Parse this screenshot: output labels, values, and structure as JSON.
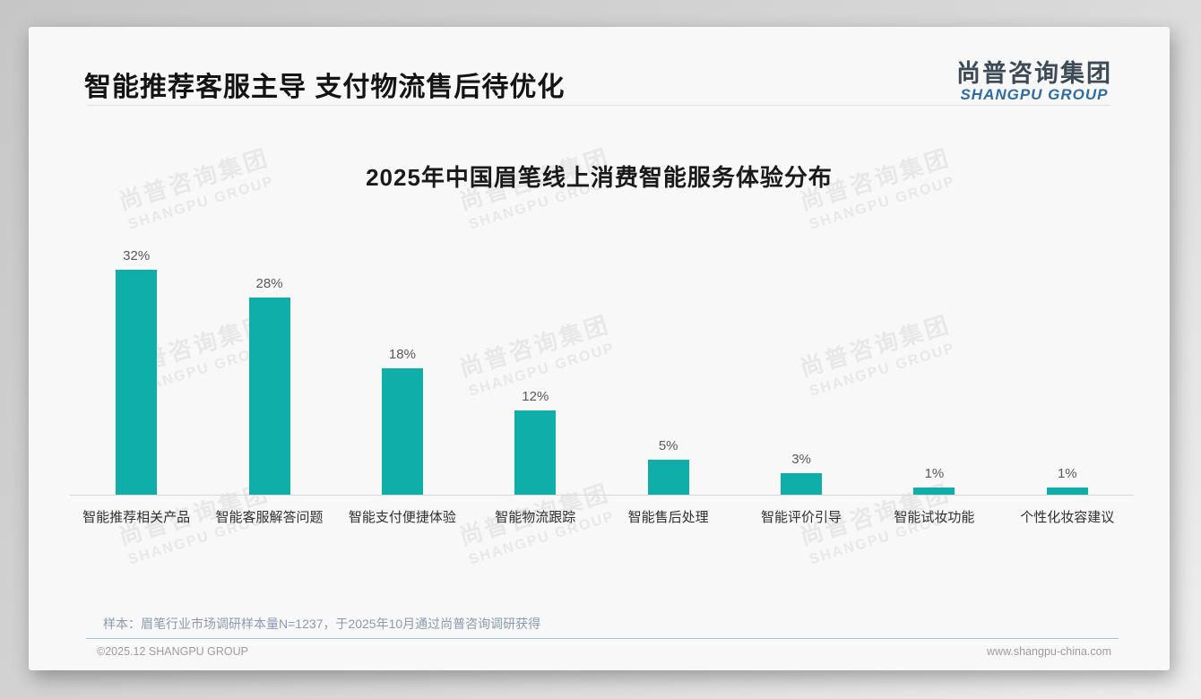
{
  "page": {
    "title": "智能推荐客服主导 支付物流售后待优化",
    "logo": {
      "zh": "尚普咨询集团",
      "en": "SHANGPU GROUP"
    },
    "watermark": {
      "zh": "尚普咨询集团",
      "en": "SHANGPU GROUP"
    },
    "footnote": "样本：眉笔行业市场调研样本量N=1237，于2025年10月通过尚普咨询调研获得",
    "footer": {
      "left": "©2025.12 SHANGPU GROUP",
      "right": "www.shangpu-china.com"
    },
    "colors": {
      "bar": "#10aea9",
      "logo_blue": "#2e6da4",
      "logo_dark": "#3d4a57",
      "footnote_blue": "#8a9ab3"
    }
  },
  "chart_data": {
    "type": "bar",
    "title": "2025年中国眉笔线上消费智能服务体验分布",
    "categories": [
      "智能推荐相关产品",
      "智能客服解答问题",
      "智能支付便捷体验",
      "智能物流跟踪",
      "智能售后处理",
      "智能评价引导",
      "智能试妆功能",
      "个性化妆容建议"
    ],
    "values": [
      32,
      28,
      18,
      12,
      5,
      3,
      1,
      1
    ],
    "value_labels": [
      "32%",
      "28%",
      "18%",
      "12%",
      "5%",
      "3%",
      "1%",
      "1%"
    ],
    "unit": "%",
    "ylim": [
      0,
      36
    ],
    "grid": false,
    "legend": "none",
    "bar_color": "#10aea9",
    "xlabel": "",
    "ylabel": ""
  }
}
